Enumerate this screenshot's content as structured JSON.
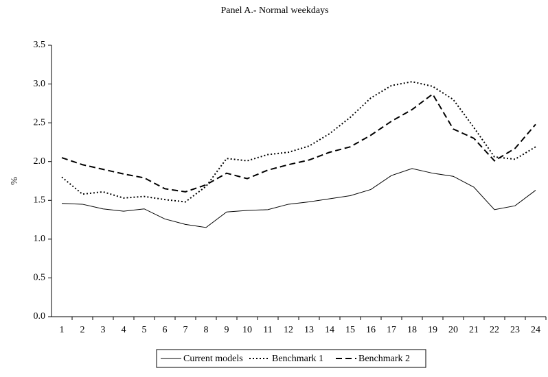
{
  "chart_data": {
    "type": "line",
    "title": "Panel A.- Normal weekdays",
    "y_label": "%",
    "categories": [
      "1",
      "2",
      "3",
      "4",
      "5",
      "6",
      "7",
      "8",
      "9",
      "10",
      "11",
      "12",
      "13",
      "14",
      "15",
      "16",
      "17",
      "18",
      "19",
      "20",
      "21",
      "22",
      "23",
      "24"
    ],
    "series": [
      {
        "name": "Current models",
        "color": "#000000",
        "style": "solid",
        "values": [
          1.46,
          1.45,
          1.39,
          1.36,
          1.39,
          1.26,
          1.19,
          1.15,
          1.35,
          1.37,
          1.38,
          1.45,
          1.48,
          1.52,
          1.56,
          1.64,
          1.82,
          1.91,
          1.85,
          1.81,
          1.67,
          1.38,
          1.43,
          1.63
        ]
      },
      {
        "name": "Benchmark 1",
        "color": "#000000",
        "style": "dotted",
        "values": [
          1.8,
          1.58,
          1.61,
          1.53,
          1.55,
          1.51,
          1.48,
          1.68,
          2.04,
          2.01,
          2.09,
          2.12,
          2.2,
          2.36,
          2.57,
          2.82,
          2.98,
          3.03,
          2.97,
          2.8,
          2.44,
          2.06,
          2.03,
          2.19
        ]
      },
      {
        "name": "Benchmark 2",
        "color": "#000000",
        "style": "dashed",
        "values": [
          2.05,
          1.96,
          1.9,
          1.84,
          1.79,
          1.65,
          1.61,
          1.7,
          1.85,
          1.78,
          1.89,
          1.96,
          2.02,
          2.12,
          2.19,
          2.34,
          2.52,
          2.67,
          2.87,
          2.42,
          2.3,
          2.01,
          2.17,
          2.48
        ]
      }
    ],
    "ylim": [
      0,
      3.5
    ],
    "yticks": [
      {
        "value": 0,
        "label": "0.0"
      },
      {
        "value": 0.5,
        "label": "0.5"
      },
      {
        "value": 1,
        "label": "1.0"
      },
      {
        "value": 1.5,
        "label": "1.5"
      },
      {
        "value": 2,
        "label": "2.0"
      },
      {
        "value": 2.5,
        "label": "2.5"
      },
      {
        "value": 3,
        "label": "3.0"
      },
      {
        "value": 3.5,
        "label": "3.5"
      }
    ],
    "grid": false,
    "legend": "bottom"
  }
}
